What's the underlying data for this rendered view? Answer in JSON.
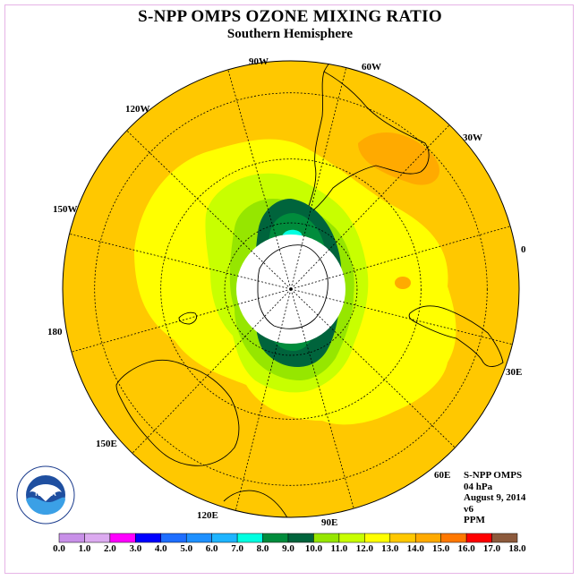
{
  "title": "S-NPP OMPS OZONE MIXING RATIO",
  "subtitle": "Southern Hemisphere",
  "longitude_labels": [
    "90W",
    "60W",
    "30W",
    "0",
    "30E",
    "60E",
    "90E",
    "120E",
    "150E",
    "180",
    "150W",
    "120W"
  ],
  "info": {
    "instrument": "S-NPP OMPS",
    "pressure": "04 hPa",
    "date": "August 9, 2014",
    "version": "v6",
    "units": "PPM"
  },
  "logo": {
    "name": "noaa-logo",
    "text": "NOAA"
  },
  "colorbar": {
    "ticks": [
      "0.0",
      "1.0",
      "2.0",
      "3.0",
      "4.0",
      "5.0",
      "6.0",
      "7.0",
      "8.0",
      "9.0",
      "10.0",
      "11.0",
      "12.0",
      "13.0",
      "14.0",
      "15.0",
      "16.0",
      "17.0",
      "18.0"
    ],
    "colors": [
      "#c890e8",
      "#dcaaf0",
      "#ff00ff",
      "#0000ff",
      "#1e6eff",
      "#1e90ff",
      "#1eb4ff",
      "#00ffe1",
      "#008c3c",
      "#00643c",
      "#96e600",
      "#c8ff00",
      "#ffff00",
      "#ffc800",
      "#ffaa00",
      "#ff7800",
      "#ff0000",
      "#8c5a3c"
    ]
  },
  "map_colors": {
    "background": "#ffc800",
    "band_13": "#ffff00",
    "band_12": "#c8ff00",
    "band_11": "#96e600",
    "band_10": "#00643c",
    "band_9": "#008c3c",
    "band_8": "#00ffe1",
    "band_15": "#ffaa00",
    "polar_night": "#ffffff"
  }
}
